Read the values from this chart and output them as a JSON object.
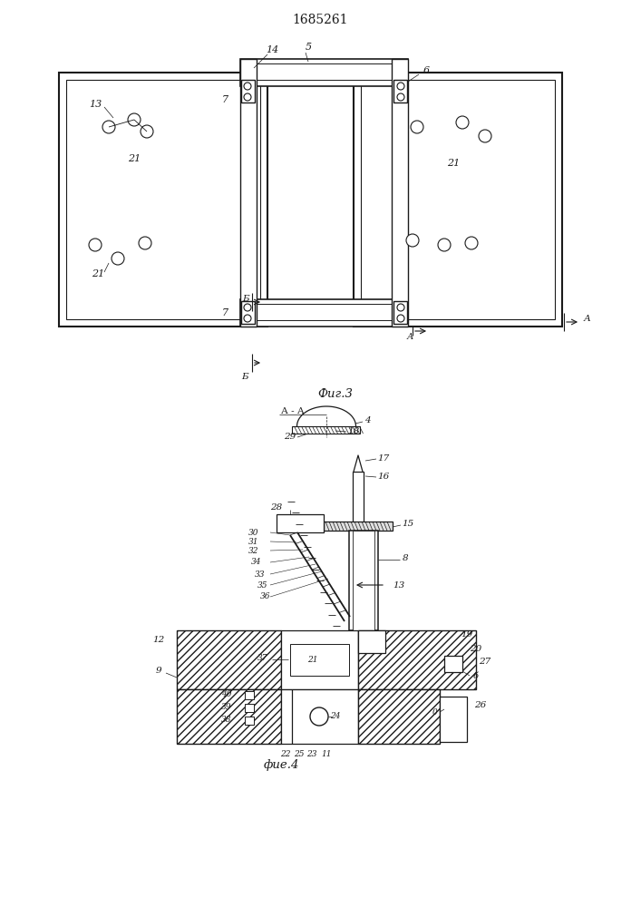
{
  "title": "1685261",
  "fig3_caption": "Фиг.3",
  "fig4_caption": "фие.4",
  "aa_label": "А - А",
  "b_label": "Б",
  "a_label": "А",
  "line_color": "#1a1a1a"
}
